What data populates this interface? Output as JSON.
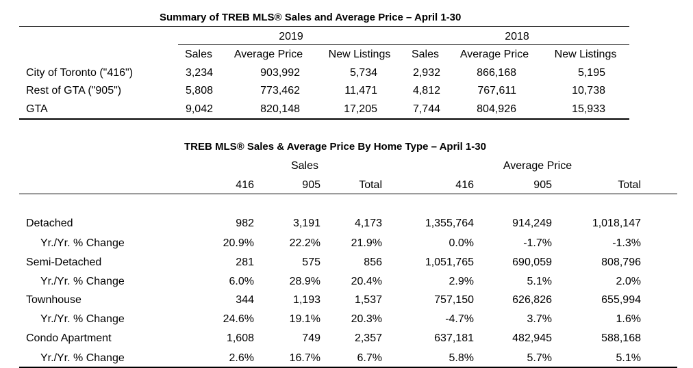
{
  "summary": {
    "title": "Summary of TREB MLS® Sales and Average Price – April 1-30",
    "years": [
      "2019",
      "2018"
    ],
    "columns": [
      "Sales",
      "Average Price",
      "New Listings",
      "Sales",
      "Average Price",
      "New Listings"
    ],
    "rows": [
      {
        "label": "City of Toronto (\"416\")",
        "values": [
          "3,234",
          "903,992",
          "5,734",
          "2,932",
          "866,168",
          "5,195"
        ]
      },
      {
        "label": "Rest of GTA (\"905\")",
        "values": [
          "5,808",
          "773,462",
          "11,471",
          "4,812",
          "767,611",
          "10,738"
        ]
      },
      {
        "label": "GTA",
        "values": [
          "9,042",
          "820,148",
          "17,205",
          "7,744",
          "804,926",
          "15,933"
        ]
      }
    ]
  },
  "hometype": {
    "title": "TREB MLS® Sales & Average Price  By Home Type – April 1-30",
    "groups": [
      "Sales",
      "Average Price"
    ],
    "columns": [
      "416",
      "905",
      "Total",
      "416",
      "905",
      "Total"
    ],
    "rows": [
      {
        "label": "Detached",
        "values": [
          "982",
          "3,191",
          "4,173",
          "1,355,764",
          "914,249",
          "1,018,147"
        ]
      },
      {
        "label": "Yr./Yr. % Change",
        "values": [
          "20.9%",
          "22.2%",
          "21.9%",
          "0.0%",
          "-1.7%",
          "-1.3%"
        ]
      },
      {
        "label": "Semi-Detached",
        "values": [
          "281",
          "575",
          "856",
          "1,051,765",
          "690,059",
          "808,796"
        ]
      },
      {
        "label": "Yr./Yr. % Change",
        "values": [
          "6.0%",
          "28.9%",
          "20.4%",
          "2.9%",
          "5.1%",
          "2.0%"
        ]
      },
      {
        "label": "Townhouse",
        "values": [
          "344",
          "1,193",
          "1,537",
          "757,150",
          "626,826",
          "655,994"
        ]
      },
      {
        "label": "Yr./Yr. % Change",
        "values": [
          "24.6%",
          "19.1%",
          "20.3%",
          "-4.7%",
          "3.7%",
          "1.6%"
        ]
      },
      {
        "label": "Condo Apartment",
        "values": [
          "1,608",
          "749",
          "2,357",
          "637,181",
          "482,945",
          "588,168"
        ]
      },
      {
        "label": "Yr./Yr. % Change",
        "values": [
          "2.6%",
          "16.7%",
          "6.7%",
          "5.8%",
          "5.7%",
          "5.1%"
        ]
      }
    ]
  }
}
